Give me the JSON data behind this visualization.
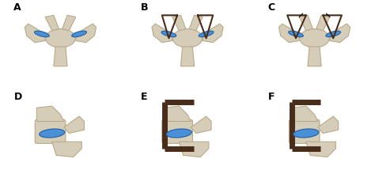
{
  "figure_width": 4.74,
  "figure_height": 2.2,
  "dpi": 100,
  "background_color": "#ffffff",
  "panel_labels": [
    "A",
    "B",
    "C",
    "D",
    "E",
    "F"
  ],
  "bone_color": "#d6cdb8",
  "bone_edge_color": "#b8a98a",
  "blue_implant_color": "#4a90d9",
  "cage_color": "#4a2c1a",
  "label_fontsize": 9,
  "label_fontweight": "bold"
}
